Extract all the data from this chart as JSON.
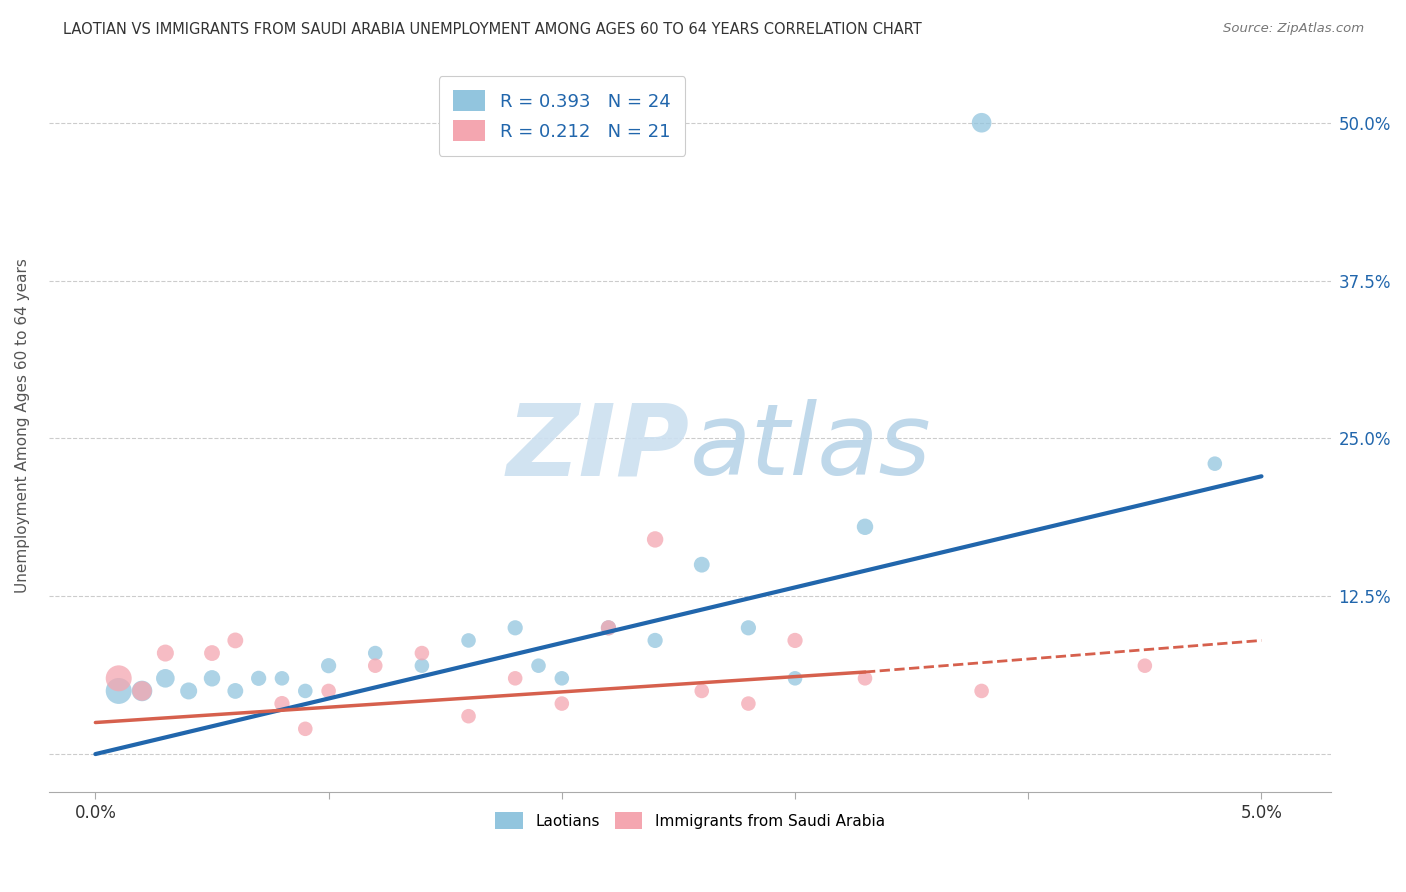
{
  "title": "LAOTIAN VS IMMIGRANTS FROM SAUDI ARABIA UNEMPLOYMENT AMONG AGES 60 TO 64 YEARS CORRELATION CHART",
  "source": "Source: ZipAtlas.com",
  "ylabel": "Unemployment Among Ages 60 to 64 years",
  "legend_blue_R": "0.393",
  "legend_blue_N": "24",
  "legend_pink_R": "0.212",
  "legend_pink_N": "21",
  "legend_label_blue": "Laotians",
  "legend_label_pink": "Immigrants from Saudi Arabia",
  "blue_color": "#92c5de",
  "pink_color": "#f4a6b0",
  "blue_line_color": "#2166ac",
  "pink_line_color": "#d6604d",
  "blue_scatter_x": [
    0.001,
    0.002,
    0.003,
    0.004,
    0.005,
    0.006,
    0.007,
    0.008,
    0.009,
    0.01,
    0.012,
    0.014,
    0.016,
    0.018,
    0.019,
    0.02,
    0.022,
    0.024,
    0.026,
    0.028,
    0.03,
    0.033,
    0.038,
    0.048
  ],
  "blue_scatter_y": [
    0.05,
    0.05,
    0.06,
    0.05,
    0.06,
    0.05,
    0.06,
    0.06,
    0.05,
    0.07,
    0.08,
    0.07,
    0.09,
    0.1,
    0.07,
    0.06,
    0.1,
    0.09,
    0.15,
    0.1,
    0.06,
    0.18,
    0.5,
    0.23
  ],
  "blue_scatter_sizes": [
    350,
    220,
    180,
    150,
    140,
    130,
    120,
    110,
    110,
    120,
    110,
    110,
    110,
    120,
    110,
    110,
    120,
    120,
    130,
    120,
    110,
    140,
    200,
    110
  ],
  "pink_scatter_x": [
    0.001,
    0.002,
    0.003,
    0.005,
    0.006,
    0.008,
    0.009,
    0.01,
    0.012,
    0.014,
    0.016,
    0.018,
    0.02,
    0.022,
    0.024,
    0.026,
    0.028,
    0.03,
    0.033,
    0.038,
    0.045
  ],
  "pink_scatter_y": [
    0.06,
    0.05,
    0.08,
    0.08,
    0.09,
    0.04,
    0.02,
    0.05,
    0.07,
    0.08,
    0.03,
    0.06,
    0.04,
    0.1,
    0.17,
    0.05,
    0.04,
    0.09,
    0.06,
    0.05,
    0.07
  ],
  "pink_scatter_sizes": [
    350,
    200,
    150,
    130,
    130,
    120,
    110,
    110,
    110,
    110,
    110,
    110,
    110,
    120,
    140,
    110,
    110,
    120,
    110,
    110,
    110
  ],
  "blue_trendline": [
    0.0,
    0.0,
    0.05,
    0.22
  ],
  "pink_trendline_solid": [
    0.0,
    0.025,
    0.033,
    0.065
  ],
  "pink_trendline_dashed": [
    0.033,
    0.065,
    0.05,
    0.09
  ],
  "xlim": [
    -0.002,
    0.053
  ],
  "ylim": [
    -0.03,
    0.55
  ],
  "yticks": [
    0.0,
    0.125,
    0.25,
    0.375,
    0.5
  ],
  "ytick_labels": [
    "",
    "12.5%",
    "25.0%",
    "37.5%",
    "50.0%"
  ],
  "xticks": [
    0.0,
    0.01,
    0.02,
    0.03,
    0.04,
    0.05
  ],
  "xtick_labels": [
    "0.0%",
    "",
    "",
    "",
    "",
    "5.0%"
  ]
}
